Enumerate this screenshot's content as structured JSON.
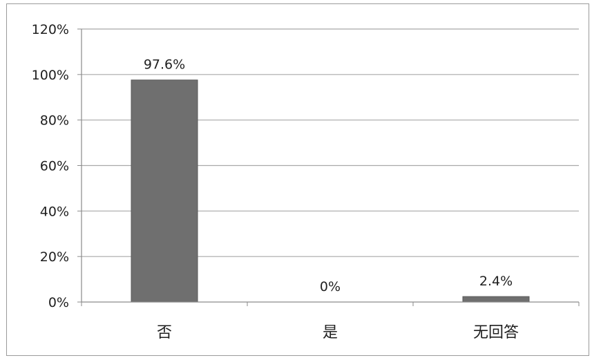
{
  "chart_data": {
    "type": "bar",
    "categories": [
      "否",
      "是",
      "无回答"
    ],
    "values": [
      97.6,
      0,
      2.4
    ],
    "data_labels": [
      "97.6%",
      "0%",
      "2.4%"
    ],
    "ylim": [
      0,
      120
    ],
    "yticks": [
      0,
      20,
      40,
      60,
      80,
      100,
      120
    ],
    "ytick_labels": [
      "0%",
      "20%",
      "40%",
      "60%",
      "80%",
      "100%",
      "120%"
    ],
    "grid": true,
    "legend": "none",
    "bar_color": "#6f6f6f",
    "grid_color": "#a8a8a8",
    "axis_color": "#8a8a8a"
  }
}
